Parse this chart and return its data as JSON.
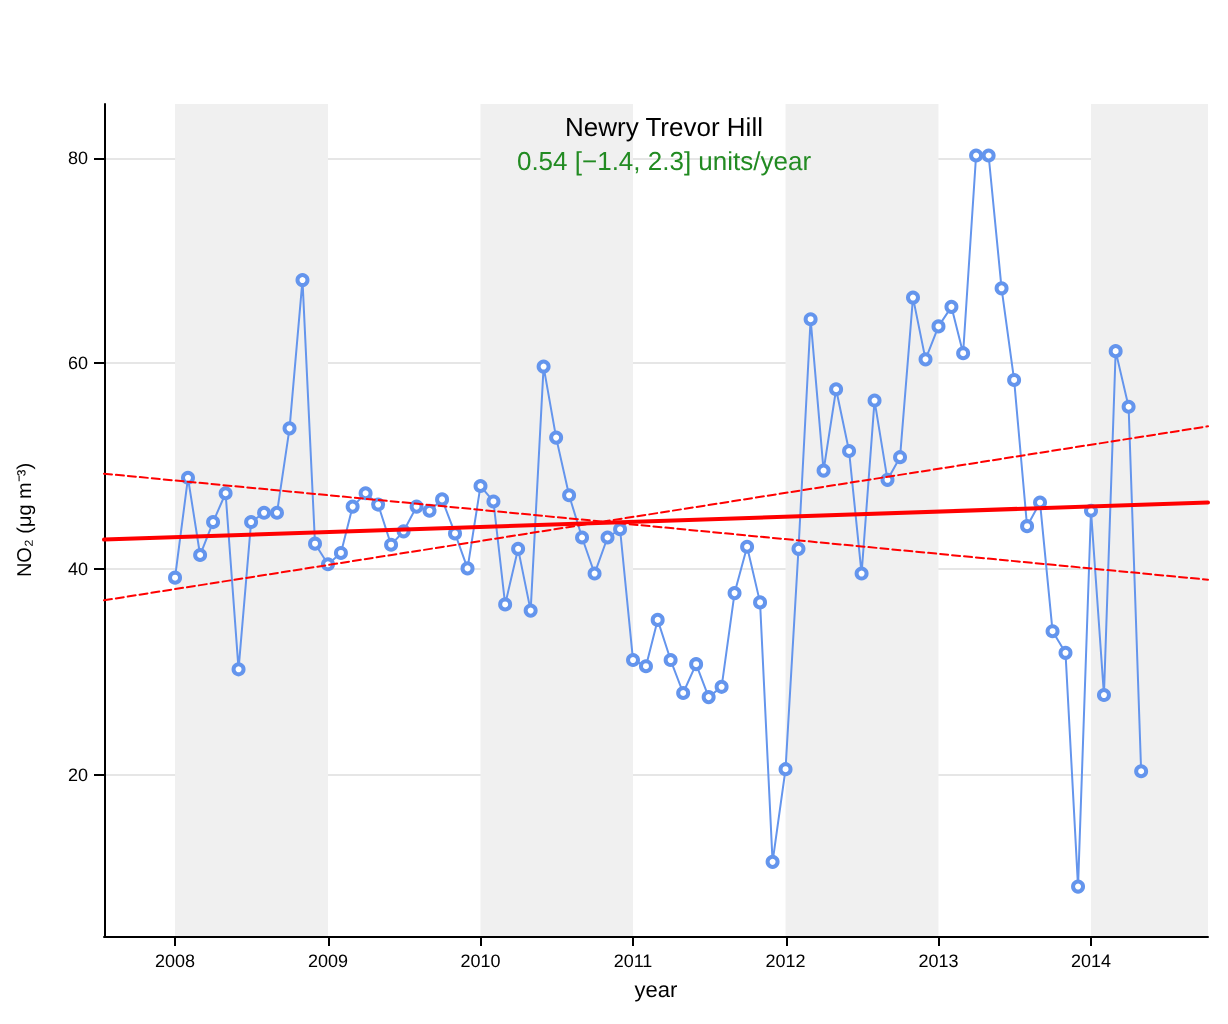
{
  "chart_data": {
    "type": "line",
    "title": "Newry Trevor Hill",
    "subtitle": "0.54 [−1.4, 2.3] units/year",
    "xlabel": "year",
    "ylabel": "NO₂ (μg m⁻³)",
    "x": [
      "2008-01",
      "2008-02",
      "2008-03",
      "2008-04",
      "2008-05",
      "2008-06",
      "2008-07",
      "2008-08",
      "2008-09",
      "2008-10",
      "2008-11",
      "2008-12",
      "2009-01",
      "2009-02",
      "2009-03",
      "2009-04",
      "2009-05",
      "2009-06",
      "2009-07",
      "2009-08",
      "2009-09",
      "2009-10",
      "2009-11",
      "2009-12",
      "2010-01",
      "2010-02",
      "2010-03",
      "2010-04",
      "2010-05",
      "2010-06",
      "2010-07",
      "2010-08",
      "2010-09",
      "2010-10",
      "2010-11",
      "2010-12",
      "2011-01",
      "2011-02",
      "2011-03",
      "2011-04",
      "2011-05",
      "2011-06",
      "2011-07",
      "2011-08",
      "2011-09",
      "2011-10",
      "2011-11",
      "2011-12",
      "2012-01",
      "2012-02",
      "2012-03",
      "2012-04",
      "2012-05",
      "2012-06",
      "2012-07",
      "2012-08",
      "2012-09",
      "2012-10",
      "2012-11",
      "2012-12",
      "2013-01",
      "2013-02",
      "2013-03",
      "2013-04",
      "2013-05",
      "2013-06",
      "2013-07",
      "2013-08",
      "2013-09",
      "2013-10",
      "2013-11",
      "2013-12",
      "2014-01",
      "2014-02",
      "2014-03",
      "2014-04",
      "2014-05"
    ],
    "series": [
      {
        "color": "#6495ed",
        "marker": "circle",
        "values": [
          39.2,
          48.9,
          41.4,
          44.6,
          47.4,
          30.3,
          44.6,
          45.5,
          45.5,
          53.7,
          68.1,
          42.5,
          40.5,
          41.6,
          46.1,
          47.4,
          46.3,
          42.4,
          43.7,
          46.1,
          45.7,
          46.8,
          43.5,
          40.1,
          48.1,
          46.6,
          36.6,
          42.0,
          36.0,
          59.7,
          52.8,
          47.2,
          43.1,
          39.6,
          43.1,
          43.9,
          31.2,
          30.6,
          35.1,
          31.2,
          28.0,
          30.8,
          27.6,
          28.6,
          37.7,
          42.2,
          36.8,
          11.6,
          20.6,
          42.0,
          64.3,
          49.6,
          57.5,
          51.5,
          39.6,
          56.4,
          48.7,
          50.9,
          66.4,
          60.4,
          63.6,
          65.5,
          61.0,
          80.2,
          80.2,
          67.3,
          58.4,
          44.2,
          46.5,
          34.0,
          31.9,
          9.2,
          45.7,
          27.8,
          61.2,
          55.8,
          20.4
        ]
      },
      {
        "type": "line",
        "color": "#ff0000",
        "marker": "none",
        "line_style": "solid",
        "x": [
          "2007-07-15",
          "2014-10-08"
        ],
        "values": [
          42.9,
          46.5
        ]
      },
      {
        "type": "line",
        "color": "#ff0000",
        "marker": "none",
        "line_style": "dashed",
        "x": [
          "2007-07-15",
          "2014-10-08"
        ],
        "values": [
          49.3,
          39.0
        ]
      },
      {
        "type": "line",
        "color": "#ff0000",
        "marker": "none",
        "line_style": "dashed",
        "x": [
          "2007-07-15",
          "2014-10-08"
        ],
        "values": [
          37.0,
          53.9
        ]
      }
    ],
    "bands": [
      {
        "axis": "x",
        "from": "2008-01-01",
        "to": "2009-01-01",
        "color": "#f0f0f0"
      },
      {
        "axis": "x",
        "from": "2010-01-01",
        "to": "2011-01-01",
        "color": "#f0f0f0"
      },
      {
        "axis": "x",
        "from": "2012-01-01",
        "to": "2013-01-01",
        "color": "#f0f0f0"
      },
      {
        "axis": "x",
        "from": "2014-01-01",
        "to": "2014-10-08",
        "color": "#f0f0f0"
      }
    ],
    "xlim": [
      "2007-07-15",
      "2014-10-08"
    ],
    "xticks": [
      "2008",
      "2009",
      "2010",
      "2011",
      "2012",
      "2013",
      "2014"
    ],
    "ylim": [
      4.4,
      85.2
    ],
    "yticks": [
      20,
      40,
      60,
      80
    ],
    "grid": "y"
  }
}
